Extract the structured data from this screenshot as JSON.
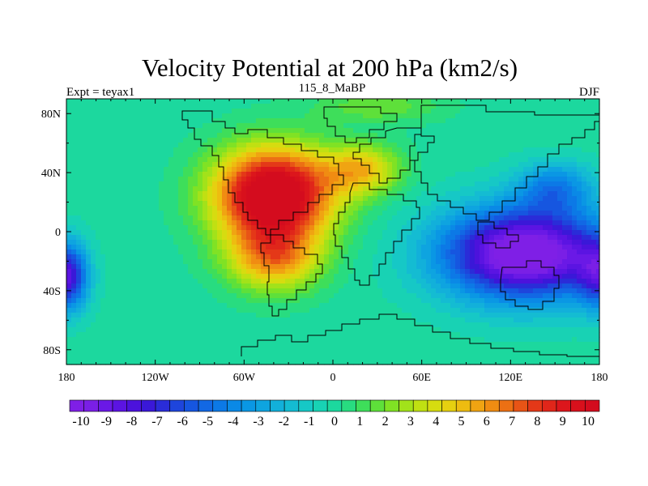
{
  "chart_data": {
    "type": "heatmap",
    "title": "Velocity Potential at 200 hPa (km2/s)",
    "left_label": "Expt = teyax1",
    "center_label": "115_8_MaBP",
    "right_label": "DJF",
    "x_range": [
      -180,
      180
    ],
    "y_range": [
      -90,
      90
    ],
    "x_ticks": [
      {
        "value": -180,
        "label": "180"
      },
      {
        "value": -120,
        "label": "120W"
      },
      {
        "value": -60,
        "label": "60W"
      },
      {
        "value": 0,
        "label": "0"
      },
      {
        "value": 60,
        "label": "60E"
      },
      {
        "value": 120,
        "label": "120E"
      },
      {
        "value": 180,
        "label": "180"
      }
    ],
    "y_ticks": [
      {
        "value": 80,
        "label": "80N"
      },
      {
        "value": 40,
        "label": "40N"
      },
      {
        "value": 0,
        "label": "0"
      },
      {
        "value": -40,
        "label": "40S"
      },
      {
        "value": -80,
        "label": "80S"
      }
    ],
    "features": [
      {
        "name": "positive-center-atlantic",
        "lon": -40,
        "lat": 25,
        "sx": 28,
        "sy": 22,
        "amp": 13
      },
      {
        "name": "positive-lobe-south-atlantic",
        "lon": -40,
        "lat": -18,
        "sx": 22,
        "sy": 16,
        "amp": 6
      },
      {
        "name": "positive-lobe-europe",
        "lon": 20,
        "lat": 42,
        "sx": 18,
        "sy": 12,
        "amp": 5
      },
      {
        "name": "negative-center-west-pacific",
        "lon": 130,
        "lat": -15,
        "sx": 40,
        "sy": 22,
        "amp": -12
      },
      {
        "name": "negative-lobe-north-pacific",
        "lon": 150,
        "lat": 30,
        "sx": 18,
        "sy": 12,
        "amp": -4
      },
      {
        "name": "negative-lobe-east-pacific",
        "lon": -180,
        "lat": -30,
        "sx": 10,
        "sy": 16,
        "amp": -9
      },
      {
        "name": "negative-lobe-east-pacific-wrap",
        "lon": 180,
        "lat": -30,
        "sx": 10,
        "sy": 16,
        "amp": -5
      },
      {
        "name": "positive-arctic",
        "lon": 30,
        "lat": 85,
        "sx": 30,
        "sy": 8,
        "amp": 2
      }
    ],
    "colorbar": {
      "labels": [
        "-10",
        "-9",
        "-8",
        "-7",
        "-6",
        "-5",
        "-4",
        "-3",
        "-2",
        "-1",
        "0",
        "1",
        "2",
        "3",
        "4",
        "5",
        "6",
        "7",
        "8",
        "9",
        "10"
      ],
      "levels": [
        -10,
        -9,
        -8,
        -7,
        -6,
        -5,
        -4,
        -3,
        -2,
        -1,
        0,
        1,
        2,
        3,
        4,
        5,
        6,
        7,
        8,
        9,
        10
      ],
      "colors": [
        "#7f1fe6",
        "#7a1fe6",
        "#6a19e6",
        "#5b14e2",
        "#4c12dc",
        "#3a18d8",
        "#2a2cd8",
        "#1e45dc",
        "#1656e0",
        "#1268e4",
        "#0c79e6",
        "#0a89e6",
        "#0a97e4",
        "#0ea4e0",
        "#12b0da",
        "#14bcd2",
        "#16c8c6",
        "#18d2b4",
        "#1cd89e",
        "#28dc80",
        "#3ede5a",
        "#5ee03a",
        "#80e224",
        "#a2e21a",
        "#c0e012",
        "#d6dc10",
        "#e6d010",
        "#eebc10",
        "#f0a412",
        "#f08c12",
        "#ec7014",
        "#e85416",
        "#e43818",
        "#e0261a",
        "#dc161c",
        "#d8101c",
        "#d40c1e"
      ]
    }
  }
}
